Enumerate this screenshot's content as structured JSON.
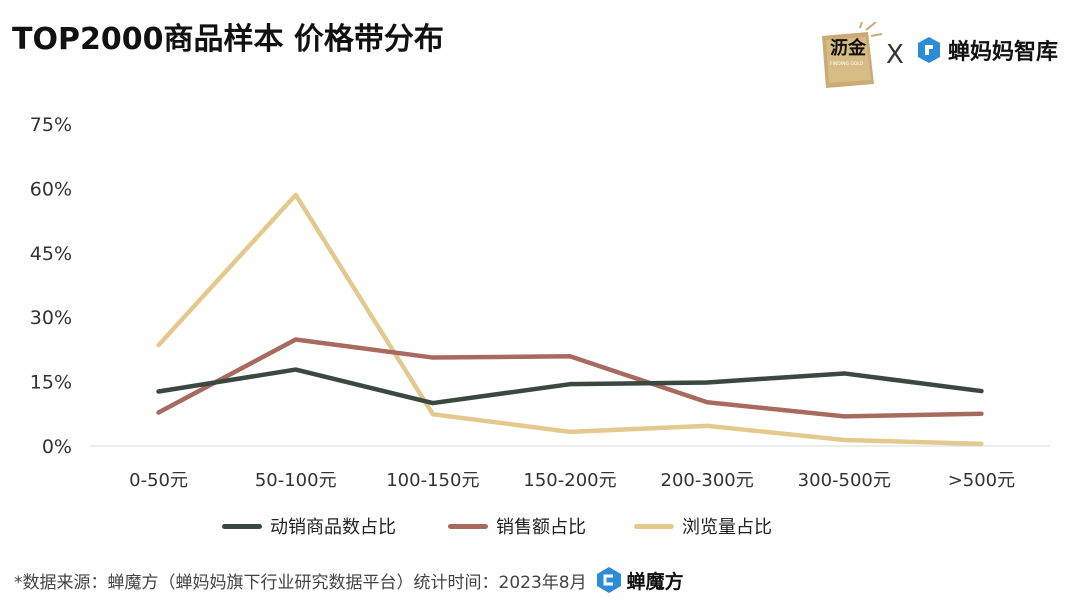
{
  "title": "TOP2000商品样本 价格带分布",
  "brand": {
    "lijin_text": "沥金",
    "lijin_sub": "FINDING GOLD",
    "separator": "X",
    "partner": "蝉妈妈智库"
  },
  "footer": {
    "source": "*数据来源：蝉魔方（蝉妈妈旗下行业研究数据平台）统计时间：2023年8月",
    "logo_text": "蝉魔方"
  },
  "colors": {
    "series_dark": "#3b4840",
    "series_rose": "#a86a5e",
    "series_tan": "#e4c98f",
    "axis": "#d8d8d8"
  },
  "chart_data": {
    "type": "line",
    "categories": [
      "0-50元",
      "50-100元",
      "100-150元",
      "150-200元",
      "200-300元",
      "300-500元",
      ">500元"
    ],
    "y_ticks": [
      "0%",
      "15%",
      "30%",
      "45%",
      "60%",
      "75%"
    ],
    "ylim": [
      0,
      75
    ],
    "grid": false,
    "legend_position": "bottom",
    "series": [
      {
        "name": "动销商品数占比",
        "values": [
          12.7,
          17.8,
          10.0,
          14.4,
          14.8,
          16.9,
          12.8
        ]
      },
      {
        "name": "销售额占比",
        "values": [
          7.8,
          24.8,
          20.6,
          20.9,
          10.2,
          6.9,
          7.5
        ]
      },
      {
        "name": "浏览量占比",
        "values": [
          23.5,
          58.5,
          7.4,
          3.3,
          4.7,
          1.4,
          0.5
        ]
      }
    ]
  }
}
